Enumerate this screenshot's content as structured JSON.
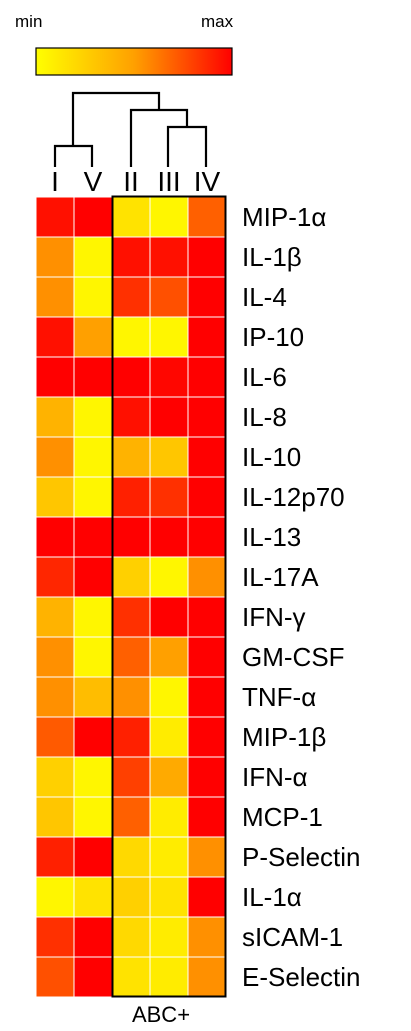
{
  "chart_data": {
    "type": "heatmap",
    "title": "",
    "color_scale": {
      "min_label": "min",
      "max_label": "max",
      "colors": [
        "#ffff00",
        "#ffa000",
        "#ff0000"
      ]
    },
    "columns": [
      "I",
      "V",
      "II",
      "III",
      "IV"
    ],
    "rows": [
      "MIP-1α",
      "IL-1β",
      "IL-4",
      "IP-10",
      "IL-6",
      "IL-8",
      "IL-10",
      "IL-12p70",
      "IL-13",
      "IL-17A",
      "IFN-γ",
      "GM-CSF",
      "TNF-α",
      "MIP-1β",
      "IFN-α",
      "MCP-1",
      "P-Selectin",
      "IL-1α",
      "sICAM-1",
      "E-Selectin"
    ],
    "values": [
      [
        0.95,
        1.0,
        0.15,
        0.05,
        0.7
      ],
      [
        0.55,
        0.05,
        0.95,
        0.95,
        1.0
      ],
      [
        0.55,
        0.05,
        0.85,
        0.75,
        1.0
      ],
      [
        0.95,
        0.5,
        0.05,
        0.05,
        1.0
      ],
      [
        1.0,
        1.0,
        1.0,
        0.98,
        1.0
      ],
      [
        0.4,
        0.05,
        0.95,
        1.0,
        1.0
      ],
      [
        0.55,
        0.05,
        0.4,
        0.3,
        1.0
      ],
      [
        0.3,
        0.05,
        0.9,
        0.85,
        1.0
      ],
      [
        1.0,
        1.0,
        1.0,
        1.0,
        1.0
      ],
      [
        0.88,
        1.0,
        0.25,
        0.05,
        0.55
      ],
      [
        0.4,
        0.05,
        0.85,
        1.0,
        1.0
      ],
      [
        0.55,
        0.05,
        0.7,
        0.5,
        1.0
      ],
      [
        0.55,
        0.35,
        0.55,
        0.05,
        1.0
      ],
      [
        0.72,
        1.0,
        0.9,
        0.1,
        1.0
      ],
      [
        0.25,
        0.05,
        0.8,
        0.45,
        1.0
      ],
      [
        0.3,
        0.05,
        0.7,
        0.1,
        1.0
      ],
      [
        0.9,
        1.0,
        0.2,
        0.1,
        0.55
      ],
      [
        0.05,
        0.15,
        0.25,
        0.15,
        1.0
      ],
      [
        0.85,
        1.0,
        0.2,
        0.1,
        0.55
      ],
      [
        0.75,
        1.0,
        0.15,
        0.1,
        0.55
      ]
    ],
    "group_box": {
      "label": "ABC+",
      "columns": [
        "II",
        "III",
        "IV"
      ]
    },
    "dendrogram": "(I,V),(II,(III,IV))"
  }
}
